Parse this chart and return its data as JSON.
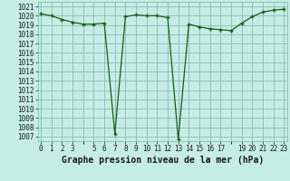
{
  "x": [
    0,
    1,
    2,
    3,
    4,
    5,
    6,
    7,
    8,
    9,
    10,
    11,
    12,
    13,
    14,
    15,
    16,
    17,
    18,
    19,
    20,
    21,
    22,
    23
  ],
  "y": [
    1020.2,
    1020.0,
    1019.6,
    1019.3,
    1019.1,
    1019.1,
    1019.2,
    1007.3,
    1019.9,
    1020.1,
    1020.0,
    1020.0,
    1019.8,
    1006.7,
    1019.1,
    1018.8,
    1018.6,
    1018.5,
    1018.4,
    1019.2,
    1019.9,
    1020.4,
    1020.6,
    1020.7
  ],
  "line_color": "#1a5c1a",
  "marker": "+",
  "marker_color": "#1a5c1a",
  "bg_color": "#c5ede5",
  "grid_color": "#7ab5a8",
  "title": "Graphe pression niveau de la mer (hPa)",
  "ylim_min": 1006.5,
  "ylim_max": 1021.5,
  "yticks": [
    1007,
    1008,
    1009,
    1010,
    1011,
    1012,
    1013,
    1014,
    1015,
    1016,
    1017,
    1018,
    1019,
    1020,
    1021
  ],
  "xtick_positions": [
    0,
    1,
    2,
    3,
    5,
    6,
    7,
    8,
    9,
    10,
    11,
    12,
    13,
    14,
    15,
    16,
    17,
    19,
    20,
    21,
    22,
    23
  ],
  "xtick_labels": [
    "0",
    "1",
    "2",
    "3",
    "5",
    "6",
    "7",
    "8",
    "9",
    "10",
    "11",
    "12",
    "13",
    "14",
    "15",
    "16",
    "17",
    "19",
    "20",
    "21",
    "22",
    "23"
  ],
  "title_fontsize": 7,
  "tick_fontsize": 5.5
}
